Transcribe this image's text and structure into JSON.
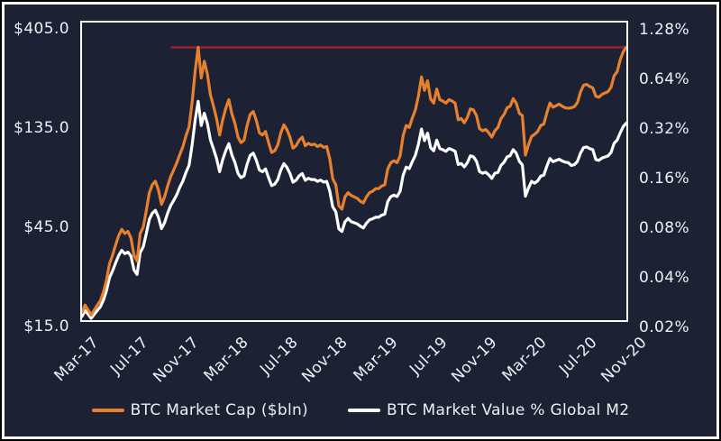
{
  "colors": {
    "background": "#1c2234",
    "frame": "#ffffff",
    "market_cap_line": "#e8812f",
    "m2_ratio_line": "#ffffff",
    "reference_line": "#962335",
    "axis_text": "#eef0f4"
  },
  "legend": {
    "items": [
      {
        "label": "BTC Market Cap ($bln)",
        "color": "#e8812f"
      },
      {
        "label": "BTC Market Value % Global M2",
        "color": "#ffffff"
      }
    ]
  },
  "chart_data": {
    "type": "line",
    "title": "",
    "xlabel": "",
    "ylabel_left": "BTC Market Cap ($bln)",
    "ylabel_right": "BTC Market Value % Global M2",
    "grid": false,
    "legend_position": "bottom",
    "x_tick_labels": [
      "Mar-17",
      "Jul-17",
      "Nov-17",
      "Mar-18",
      "Jul-18",
      "Nov-18",
      "Mar-19",
      "Jul-19",
      "Nov-19",
      "Mar-20",
      "Jul-20",
      "Nov-20"
    ],
    "y_left_axis": {
      "scale": "log",
      "ratio_per_step": 3,
      "ticks": [
        {
          "value": 405,
          "label": "$405.0"
        },
        {
          "value": 135,
          "label": "$135.0"
        },
        {
          "value": 45,
          "label": "$45.0"
        },
        {
          "value": 15,
          "label": "$15.0"
        }
      ]
    },
    "y_right_axis": {
      "scale": "log",
      "ratio_per_step": 2,
      "ticks": [
        {
          "value": 1.28,
          "label": "1.28%"
        },
        {
          "value": 0.64,
          "label": "0.64%"
        },
        {
          "value": 0.32,
          "label": "0.32%"
        },
        {
          "value": 0.16,
          "label": "0.16%"
        },
        {
          "value": 0.08,
          "label": "0.08%"
        },
        {
          "value": 0.04,
          "label": "0.04%"
        },
        {
          "value": 0.02,
          "label": "0.02%"
        }
      ]
    },
    "reference_line": {
      "axis": "left",
      "value": 330,
      "start_fraction": 0.163,
      "color": "#962335",
      "meaning": "Dec-2017 all-time-high market cap level"
    },
    "series": [
      {
        "name": "BTC Market Cap ($bln)",
        "axis": "left",
        "color": "#e8812f",
        "values": [
          17.5,
          19,
          18,
          17,
          18,
          19,
          20,
          22,
          25,
          30,
          33,
          37,
          41,
          44,
          42,
          43,
          40,
          33,
          31,
          42,
          45,
          54,
          66,
          72,
          75,
          68,
          58,
          63,
          71,
          79,
          85,
          92,
          101,
          110,
          124,
          137,
          180,
          255,
          330,
          235,
          283,
          245,
          195,
          172,
          150,
          125,
          148,
          168,
          185,
          158,
          142,
          122,
          115,
          118,
          139,
          157,
          162,
          147,
          128,
          125,
          130,
          115,
          103,
          105,
          112,
          128,
          140,
          133,
          122,
          108,
          111,
          118,
          122,
          111,
          114,
          112,
          113,
          110,
          112,
          109,
          110,
          96,
          77,
          72,
          57,
          55,
          63,
          66,
          64,
          63,
          62,
          60,
          59,
          63,
          66,
          67,
          69,
          69,
          71,
          72,
          86,
          92,
          94,
          92,
          99,
          124,
          139,
          136,
          151,
          165,
          193,
          238,
          205,
          228,
          186,
          178,
          208,
          185,
          182,
          178,
          185,
          182,
          178,
          148,
          150,
          143,
          152,
          167,
          165,
          155,
          134,
          131,
          133,
          128,
          122,
          131,
          136,
          150,
          157,
          169,
          172,
          187,
          178,
          159,
          155,
          100,
          112,
          123,
          126,
          130,
          139,
          141,
          160,
          178,
          170,
          173,
          176,
          172,
          169,
          168,
          169,
          171,
          179,
          201,
          217,
          219,
          214,
          211,
          192,
          190,
          196,
          199,
          202,
          212,
          241,
          252,
          288,
          315,
          330
        ]
      },
      {
        "name": "BTC Market Value % Global M2",
        "axis": "right",
        "color": "#ffffff",
        "values": [
          0.0233,
          0.0253,
          0.024,
          0.0227,
          0.024,
          0.0253,
          0.0267,
          0.0293,
          0.0333,
          0.04,
          0.044,
          0.0493,
          0.0547,
          0.0587,
          0.056,
          0.0573,
          0.0541,
          0.0446,
          0.0419,
          0.0568,
          0.0616,
          0.074,
          0.0904,
          0.0986,
          0.1027,
          0.0932,
          0.0795,
          0.0863,
          0.0986,
          0.1097,
          0.1181,
          0.1278,
          0.1423,
          0.1549,
          0.1746,
          0.193,
          0.2571,
          0.3643,
          0.4714,
          0.3357,
          0.3986,
          0.3451,
          0.2746,
          0.2423,
          0.2113,
          0.1761,
          0.2085,
          0.2366,
          0.2606,
          0.2225,
          0.2,
          0.1718,
          0.162,
          0.1662,
          0.1958,
          0.2211,
          0.2282,
          0.207,
          0.1803,
          0.1761,
          0.1831,
          0.162,
          0.1451,
          0.1479,
          0.1577,
          0.1803,
          0.1972,
          0.1873,
          0.1718,
          0.1521,
          0.1563,
          0.1662,
          0.1718,
          0.1563,
          0.1606,
          0.1577,
          0.158,
          0.1538,
          0.1566,
          0.1524,
          0.1538,
          0.1343,
          0.1077,
          0.1007,
          0.0792,
          0.0764,
          0.0875,
          0.0917,
          0.0877,
          0.0863,
          0.0849,
          0.0822,
          0.0803,
          0.0857,
          0.0898,
          0.0912,
          0.0932,
          0.0932,
          0.0959,
          0.0973,
          0.1162,
          0.1243,
          0.127,
          0.1243,
          0.1338,
          0.1676,
          0.1878,
          0.1838,
          0.2027,
          0.2215,
          0.2591,
          0.3195,
          0.2715,
          0.302,
          0.2464,
          0.2358,
          0.2737,
          0.2434,
          0.2395,
          0.2342,
          0.2434,
          0.2395,
          0.2342,
          0.1947,
          0.1974,
          0.1882,
          0.2,
          0.2197,
          0.2171,
          0.2039,
          0.1763,
          0.1724,
          0.175,
          0.1684,
          0.1605,
          0.1724,
          0.1744,
          0.1923,
          0.2013,
          0.2167,
          0.2205,
          0.2397,
          0.2282,
          0.2038,
          0.1938,
          0.125,
          0.14,
          0.1538,
          0.15,
          0.1548,
          0.1655,
          0.1679,
          0.1905,
          0.2119,
          0.2024,
          0.206,
          0.2095,
          0.2048,
          0.2012,
          0.2,
          0.192,
          0.1943,
          0.2034,
          0.2284,
          0.2466,
          0.2489,
          0.2432,
          0.2398,
          0.2087,
          0.2065,
          0.213,
          0.2163,
          0.2196,
          0.2304,
          0.262,
          0.2739,
          0.3032,
          0.3316,
          0.3474
        ]
      }
    ]
  }
}
